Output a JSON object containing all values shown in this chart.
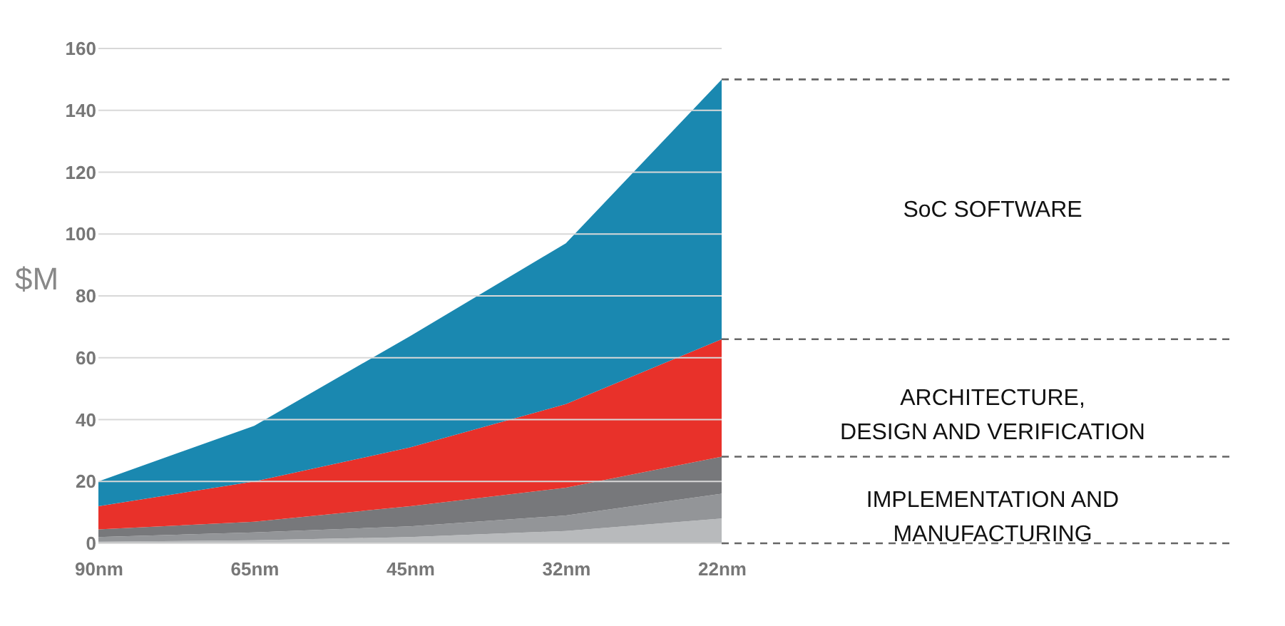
{
  "chart_data": {
    "type": "area",
    "stacked": true,
    "ylabel": "$M",
    "categories": [
      "90nm",
      "65nm",
      "45nm",
      "32nm",
      "22nm"
    ],
    "series": [
      {
        "color": "#b8babc",
        "values": [
          0.5,
          1,
          2,
          4,
          8
        ]
      },
      {
        "color": "#939598",
        "values": [
          1.5,
          2.5,
          3.5,
          5,
          8
        ]
      },
      {
        "name": "IMPLEMENTATION AND\nMANUFACTURING",
        "color": "#77787b",
        "values": [
          2.5,
          3.5,
          6.5,
          9,
          12
        ]
      },
      {
        "name": "ARCHITECTURE,\nDESIGN AND VERIFICATION",
        "color": "#e8312a",
        "values": [
          7.5,
          13,
          19,
          27,
          38
        ]
      },
      {
        "name": "SoC SOFTWARE",
        "color": "#1a88b0",
        "values": [
          8,
          18,
          36,
          52,
          84
        ]
      }
    ],
    "ylim": [
      0,
      160
    ],
    "yticks": [
      0,
      20,
      40,
      60,
      80,
      100,
      120,
      140,
      160
    ],
    "grid": "y"
  }
}
